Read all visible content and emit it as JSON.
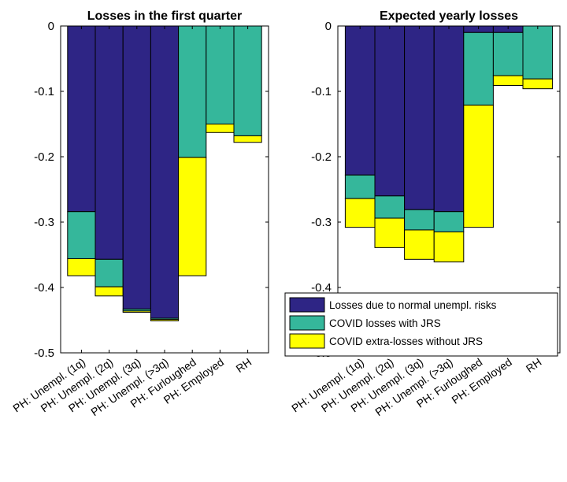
{
  "chart_data": [
    {
      "type": "bar",
      "stacked": true,
      "title": "Losses in the first quarter",
      "ylim": [
        -0.5,
        0
      ],
      "yticks": [
        "0",
        "-0.1",
        "-0.2",
        "-0.3",
        "-0.4",
        "-0.5"
      ],
      "categories": [
        "PH: Unempl. (1q)",
        "PH: Unempl. (2q)",
        "PH: Unempl. (3q)",
        "PH: Unempl. (>3q)",
        "PH: Furloughed",
        "PH: Employed",
        "RH"
      ],
      "series": [
        {
          "name": "Losses due to normal unempl. risks",
          "values": [
            -0.284,
            -0.357,
            -0.433,
            -0.447,
            0,
            0,
            0
          ]
        },
        {
          "name": "COVID losses with JRS",
          "values": [
            -0.072,
            -0.042,
            -0.003,
            -0.002,
            -0.201,
            -0.15,
            -0.168
          ]
        },
        {
          "name": "COVID extra-losses without JRS",
          "values": [
            -0.026,
            -0.014,
            -0.002,
            -0.002,
            -0.181,
            -0.013,
            -0.01
          ]
        }
      ]
    },
    {
      "type": "bar",
      "stacked": true,
      "title": "Expected yearly losses",
      "ylim": [
        -0.5,
        0
      ],
      "yticks": [
        "0",
        "-0.1",
        "-0.2",
        "-0.3",
        "-0.4",
        "-0.5"
      ],
      "categories": [
        "PH: Unempl. (1q)",
        "PH: Unempl. (2q)",
        "PH: Unempl. (3q)",
        "PH: Unempl. (>3q)",
        "PH: Furloughed",
        "PH: Employed",
        "RH"
      ],
      "series": [
        {
          "name": "Losses due to normal unempl. risks",
          "values": [
            -0.228,
            -0.26,
            -0.281,
            -0.284,
            -0.01,
            -0.01,
            0
          ]
        },
        {
          "name": "COVID losses with JRS",
          "values": [
            -0.036,
            -0.034,
            -0.031,
            -0.031,
            -0.111,
            -0.066,
            -0.081
          ]
        },
        {
          "name": "COVID extra-losses without JRS",
          "values": [
            -0.044,
            -0.045,
            -0.045,
            -0.046,
            -0.187,
            -0.015,
            -0.015
          ]
        }
      ],
      "legend_position": "bottom-left"
    }
  ],
  "colors": [
    "#2e2585",
    "#35b79b",
    "#ffff00"
  ]
}
